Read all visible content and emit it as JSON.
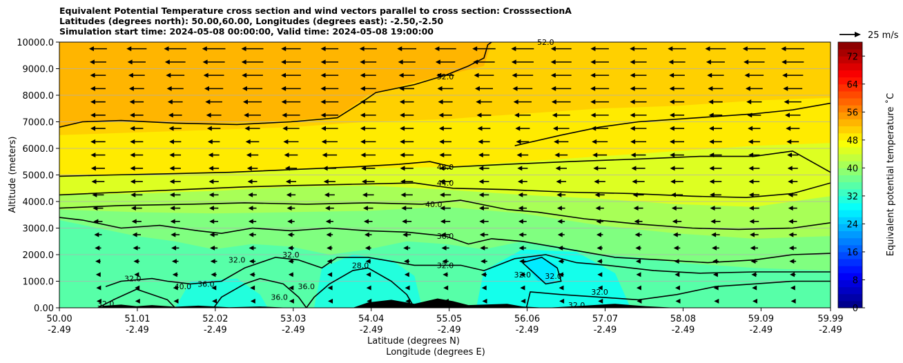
{
  "title_lines": [
    "Equivalent Potential Temperature cross section and wind vectors parallel to cross section: CrosssectionA",
    "Latitudes (degrees north): 50.00,60.00, Longitudes (degrees east): -2.50,-2.50",
    "Simulation start time: 2024-05-08 00:00:00, Valid time: 2024-05-08 19:00:00"
  ],
  "chart_data": {
    "type": "heatmap",
    "subtype": "filled contour cross section with wind vectors",
    "ylabel": "Altitude (meters)",
    "xlabel_line1": "Latitude (degrees N)",
    "xlabel_line2": "Longitude (degrees E)",
    "ylim": [
      0,
      10000
    ],
    "xlim": [
      50.0,
      59.99
    ],
    "y_ticks": [
      "0.00",
      "1000.0",
      "2000.0",
      "3000.0",
      "4000.0",
      "5000.0",
      "6000.0",
      "7000.0",
      "8000.0",
      "9000.0",
      "10000.0"
    ],
    "y_tick_values": [
      0,
      1000,
      2000,
      3000,
      4000,
      5000,
      6000,
      7000,
      8000,
      9000,
      10000
    ],
    "x_ticks_lat": [
      "50.00",
      "51.01",
      "52.02",
      "53.03",
      "54.04",
      "55.05",
      "56.06",
      "57.07",
      "58.08",
      "59.09",
      "59.99"
    ],
    "x_tick_values": [
      50.0,
      51.01,
      52.02,
      53.03,
      54.04,
      55.05,
      56.06,
      57.07,
      58.08,
      59.09,
      59.99
    ],
    "x_ticks_lon": [
      "-2.49",
      "-2.49",
      "-2.49",
      "-2.49",
      "-2.49",
      "-2.49",
      "-2.49",
      "-2.49",
      "-2.49",
      "-2.49",
      "-2.49"
    ],
    "grid": true,
    "colorbar": {
      "label": "Equivalent potential temperature ˚C",
      "range": [
        0,
        76
      ],
      "ticks": [
        "0",
        "8",
        "16",
        "24",
        "32",
        "40",
        "48",
        "56",
        "64",
        "72"
      ],
      "tick_values": [
        0,
        8,
        16,
        24,
        32,
        40,
        48,
        56,
        64,
        72
      ]
    },
    "quiver_key": "25 m/s",
    "wind_direction": "toward lower latitude (southward), strongest aloft",
    "contour_levels": [
      28,
      32,
      36,
      40,
      44,
      48,
      52
    ],
    "contour_labels": [
      {
        "text": "52.0",
        "lat": 56.3,
        "alt": 10000
      },
      {
        "text": "52.0",
        "lat": 55.0,
        "alt": 8700
      },
      {
        "text": "48.0",
        "lat": 55.0,
        "alt": 5300
      },
      {
        "text": "44.0",
        "lat": 55.0,
        "alt": 4700
      },
      {
        "text": "40.0",
        "lat": 54.85,
        "alt": 3900
      },
      {
        "text": "36.0",
        "lat": 55.0,
        "alt": 2700
      },
      {
        "text": "32.0",
        "lat": 55.0,
        "alt": 1600
      },
      {
        "text": "32.0",
        "lat": 53.0,
        "alt": 2000
      },
      {
        "text": "32.0",
        "lat": 52.3,
        "alt": 1800
      },
      {
        "text": "28.0",
        "lat": 53.9,
        "alt": 1600
      },
      {
        "text": "32.0",
        "lat": 56.0,
        "alt": 1250
      },
      {
        "text": "32.0",
        "lat": 56.4,
        "alt": 1200
      },
      {
        "text": "32.0",
        "lat": 57.0,
        "alt": 600
      },
      {
        "text": "32.0",
        "lat": 56.7,
        "alt": 100
      },
      {
        "text": "36.0",
        "lat": 53.2,
        "alt": 800
      },
      {
        "text": "36.0",
        "lat": 52.85,
        "alt": 400
      },
      {
        "text": "36.0",
        "lat": 51.9,
        "alt": 900
      },
      {
        "text": "40.0",
        "lat": 51.6,
        "alt": 800
      },
      {
        "text": "32.0",
        "lat": 50.95,
        "alt": 1100
      },
      {
        "text": "32.0",
        "lat": 50.6,
        "alt": 150
      }
    ]
  },
  "colors": {
    "terrain": "#000000",
    "contour": "#000000",
    "grid": "#b0b0b0"
  }
}
